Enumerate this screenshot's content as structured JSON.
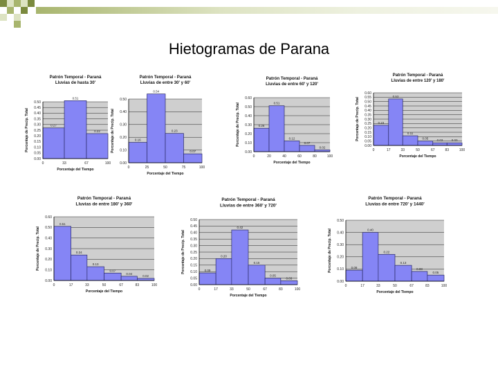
{
  "slide": {
    "title": "Hietogramas de Parana"
  },
  "colors": {
    "bar_fill": "#8585f5",
    "bar_stroke": "#2a2a66",
    "plot_bg": "#cfcfcf",
    "grid": "#222222",
    "deco_dark": "#7b8a3e",
    "deco_mid": "#a8b56e",
    "deco_light": "#dde3c2"
  },
  "chart_data": [
    {
      "type": "bar",
      "title": "Patrón Temporal - Paraná",
      "subtitle": "Lluvias de hasta 30'",
      "xlabel": "Porcentaje del Tiempo",
      "ylabel": "Porcentaje de Precip. Total",
      "x_ticks": [
        "0",
        "33",
        "67",
        "100"
      ],
      "y_ticks": [
        "0.00",
        "0.05",
        "0.10",
        "0.15",
        "0.20",
        "0.25",
        "0.30",
        "0.35",
        "0.40",
        "0.45",
        "0.50"
      ],
      "ylim": [
        0,
        0.5
      ],
      "bins": [
        [
          0,
          33
        ],
        [
          33,
          67
        ],
        [
          67,
          100
        ]
      ],
      "values": [
        0.27,
        0.51,
        0.22
      ],
      "labels": [
        "0.27",
        "0.51",
        "0.22"
      ]
    },
    {
      "type": "bar",
      "title": "Patrón Temporal - Paraná",
      "subtitle": "Lluvias de entre 30' y 60'",
      "xlabel": "Porcentaje del Tiempo",
      "ylabel": "Porcentaje de Precip. Total",
      "x_ticks": [
        "0",
        "25",
        "50",
        "75",
        "100"
      ],
      "y_ticks": [
        "0.00",
        "0.10",
        "0.20",
        "0.30",
        "0.40",
        "0.50"
      ],
      "ylim": [
        0,
        0.5
      ],
      "bins": [
        [
          0,
          25
        ],
        [
          25,
          50
        ],
        [
          50,
          75
        ],
        [
          75,
          100
        ]
      ],
      "values": [
        0.16,
        0.54,
        0.23,
        0.07
      ],
      "labels": [
        "0.16",
        "0.54",
        "0.23",
        "0.07"
      ]
    },
    {
      "type": "bar",
      "title": "Patrón Temporal - Paraná",
      "subtitle": "Lluvias de entre 60' y 120'",
      "xlabel": "Porcentaje del Tiempo",
      "ylabel": "Porcentaje de Precip. Total",
      "x_ticks": [
        "0",
        "20",
        "40",
        "60",
        "80",
        "100"
      ],
      "y_ticks": [
        "0.00",
        "0.10",
        "0.20",
        "0.30",
        "0.40",
        "0.50",
        "0.60"
      ],
      "ylim": [
        0,
        0.6
      ],
      "bins": [
        [
          0,
          20
        ],
        [
          20,
          40
        ],
        [
          40,
          60
        ],
        [
          60,
          80
        ],
        [
          80,
          100
        ]
      ],
      "values": [
        0.26,
        0.51,
        0.12,
        0.07,
        0.02
      ],
      "labels": [
        "0.26",
        "0.51",
        "0.12",
        "0.07",
        "0.02"
      ]
    },
    {
      "type": "bar",
      "title": "Patrón Temporal - Paraná",
      "subtitle": "Lluvias de entre 120' y 180'",
      "xlabel": "Porcentaje del Tiempo",
      "ylabel": "Porcentaje de Precip. Total",
      "x_ticks": [
        "0",
        "17",
        "33",
        "50",
        "67",
        "83",
        "100"
      ],
      "y_ticks": [
        "0.00",
        "0.05",
        "0.10",
        "0.15",
        "0.20",
        "0.25",
        "0.30",
        "0.35",
        "0.40",
        "0.45",
        "0.50",
        "0.55",
        "0.60"
      ],
      "ylim": [
        0,
        0.6
      ],
      "bins": [
        [
          0,
          17
        ],
        [
          17,
          33
        ],
        [
          33,
          50
        ],
        [
          50,
          67
        ],
        [
          67,
          83
        ],
        [
          83,
          100
        ]
      ],
      "values": [
        0.23,
        0.53,
        0.11,
        0.05,
        0.03,
        0.03
      ],
      "labels": [
        "0.23",
        "0.53",
        "0.11",
        "0.05",
        "0.03",
        "0.03"
      ]
    },
    {
      "type": "bar",
      "title": "Patrón Temporal - Paraná",
      "subtitle": "Lluvias de entre 180' y 360'",
      "xlabel": "Porcentaje del Tiempo",
      "ylabel": "Porcentaje de Precip. Total",
      "x_ticks": [
        "0",
        "17",
        "33",
        "50",
        "67",
        "83",
        "100"
      ],
      "y_ticks": [
        "0.00",
        "0.10",
        "0.20",
        "0.30",
        "0.40",
        "0.50",
        "0.60"
      ],
      "ylim": [
        0,
        0.6
      ],
      "bins": [
        [
          0,
          17
        ],
        [
          17,
          33
        ],
        [
          33,
          50
        ],
        [
          50,
          67
        ],
        [
          67,
          83
        ],
        [
          83,
          100
        ]
      ],
      "values": [
        0.51,
        0.24,
        0.13,
        0.07,
        0.04,
        0.02
      ],
      "labels": [
        "0.51",
        "0.24",
        "0.13",
        "0.07",
        "0.04",
        "0.02"
      ]
    },
    {
      "type": "bar",
      "title": "Patrón Temporal - Paraná",
      "subtitle": "Lluvias de entre 360' y 720'",
      "xlabel": "Porcentaje del Tiempo",
      "ylabel": "Porcentaje de Precip. Total",
      "x_ticks": [
        "0",
        "17",
        "33",
        "50",
        "67",
        "83",
        "100"
      ],
      "y_ticks": [
        "0.00",
        "0.05",
        "0.10",
        "0.15",
        "0.20",
        "0.25",
        "0.30",
        "0.35",
        "0.40",
        "0.45",
        "0.50"
      ],
      "ylim": [
        0,
        0.5
      ],
      "bins": [
        [
          0,
          17
        ],
        [
          17,
          33
        ],
        [
          33,
          50
        ],
        [
          50,
          67
        ],
        [
          67,
          83
        ],
        [
          83,
          100
        ]
      ],
      "values": [
        0.09,
        0.2,
        0.42,
        0.15,
        0.05,
        0.03
      ],
      "labels": [
        "0.09",
        "0.20",
        "0.42",
        "0.15",
        "0.05",
        "0.03"
      ]
    },
    {
      "type": "bar",
      "title": "Patrón Temporal - Paraná",
      "subtitle": "Lluvias de entre 720' y 1440'",
      "xlabel": "Porcentaje del Tiempo",
      "ylabel": "Porcentaje de Precip. Total",
      "x_ticks": [
        "0",
        "17",
        "33",
        "50",
        "67",
        "83",
        "100"
      ],
      "y_ticks": [
        "0.00",
        "0.10",
        "0.20",
        "0.30",
        "0.40",
        "0.50"
      ],
      "ylim": [
        0,
        0.5
      ],
      "bins": [
        [
          0,
          17
        ],
        [
          17,
          33
        ],
        [
          33,
          50
        ],
        [
          50,
          67
        ],
        [
          67,
          83
        ],
        [
          83,
          100
        ]
      ],
      "values": [
        0.09,
        0.4,
        0.22,
        0.13,
        0.08,
        0.05
      ],
      "labels": [
        "0.09",
        "0.40",
        "0.22",
        "0.13",
        "0.08",
        "0.05"
      ]
    }
  ]
}
